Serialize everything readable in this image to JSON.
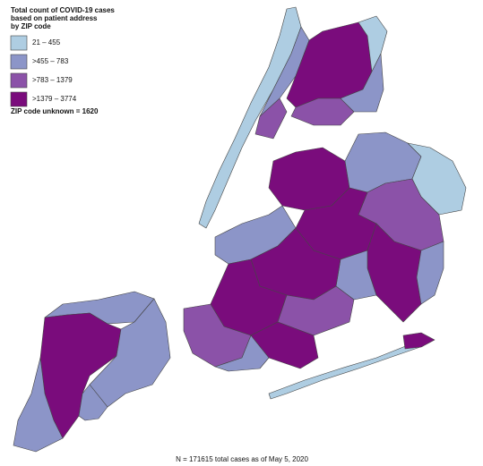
{
  "title": [
    "Total count of COVID-19 cases",
    "based on patient address",
    "by ZIP code"
  ],
  "legend": [
    {
      "label": "21 – 455",
      "color": "#aecde2"
    },
    {
      "label": ">455 – 783",
      "color": "#8c95c8"
    },
    {
      "label": ">783 – 1379",
      "color": "#8b52a8"
    },
    {
      "label": ">1379 – 3774",
      "color": "#7a0c7c"
    }
  ],
  "unknown": "ZIP code unknown = 1620",
  "footnote": "N = 171615 total cases as of May 5, 2020"
}
